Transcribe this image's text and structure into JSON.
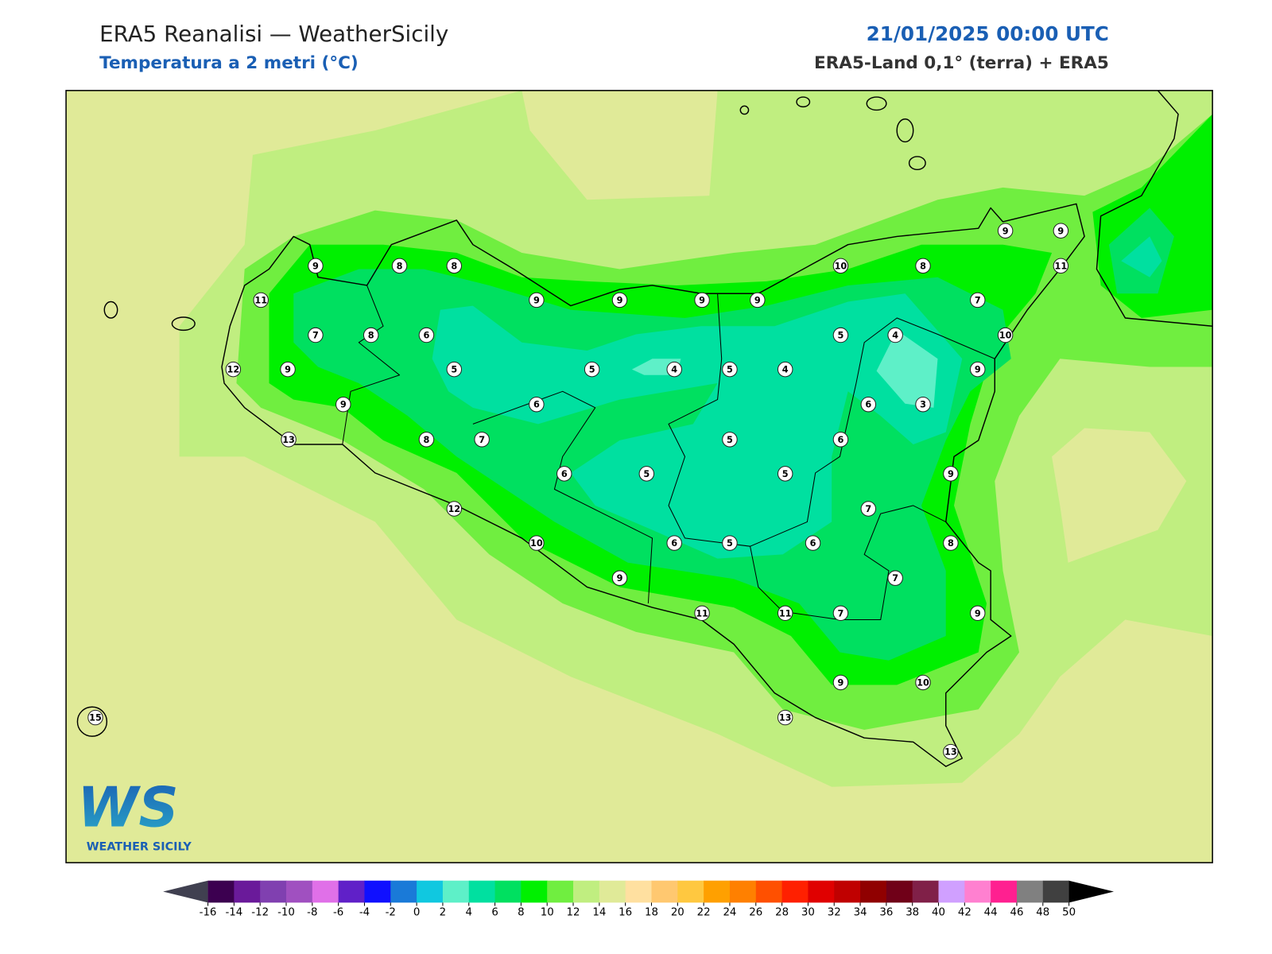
{
  "header": {
    "title": "ERA5 Reanalisi — WeatherSicily",
    "subtitle": "Temperatura a 2 metri (°C)",
    "datetime": "21/01/2025 00:00 UTC",
    "source": "ERA5-Land 0,1° (terra) + ERA5"
  },
  "stations": [
    9,
    8,
    8,
    11,
    9,
    9,
    9,
    9,
    10,
    8,
    9,
    9,
    11,
    7,
    7,
    8,
    6,
    5,
    4,
    10,
    12,
    9,
    5,
    5,
    4,
    5,
    4,
    9,
    9,
    6,
    6,
    3,
    13,
    8,
    7,
    5,
    6,
    6,
    5,
    5,
    9,
    12,
    7,
    10,
    6,
    5,
    6,
    8,
    9,
    7,
    11,
    11,
    7,
    9,
    9,
    10,
    15,
    13,
    13
  ],
  "logo": {
    "mark": "WS",
    "text": "WEATHER SICILY"
  },
  "colorbar": {
    "ticks": [
      -16,
      -14,
      -12,
      -10,
      -8,
      -6,
      -4,
      -2,
      0,
      2,
      4,
      6,
      8,
      10,
      12,
      14,
      16,
      18,
      20,
      22,
      24,
      26,
      28,
      30,
      32,
      34,
      36,
      38,
      40,
      42,
      44,
      46,
      48,
      50
    ],
    "colors": [
      "#3c0050",
      "#6a1a9a",
      "#8040b0",
      "#a050c0",
      "#e070e8",
      "#6020c8",
      "#1010ff",
      "#1a7ad8",
      "#10c8e0",
      "#5ef0c8",
      "#00e0a0",
      "#00e060",
      "#00f000",
      "#70ee40",
      "#c0ee80",
      "#e0ea98",
      "#ffe0a0",
      "#ffc870",
      "#ffc840",
      "#ffa000",
      "#ff8000",
      "#ff5000",
      "#ff2000",
      "#e00000",
      "#c00000",
      "#900000",
      "#700018",
      "#802048",
      "#d0a0ff",
      "#ff80d0",
      "#ff2090",
      "#808080",
      "#404040"
    ],
    "under_color": "#404050",
    "over_color": "#000000"
  }
}
